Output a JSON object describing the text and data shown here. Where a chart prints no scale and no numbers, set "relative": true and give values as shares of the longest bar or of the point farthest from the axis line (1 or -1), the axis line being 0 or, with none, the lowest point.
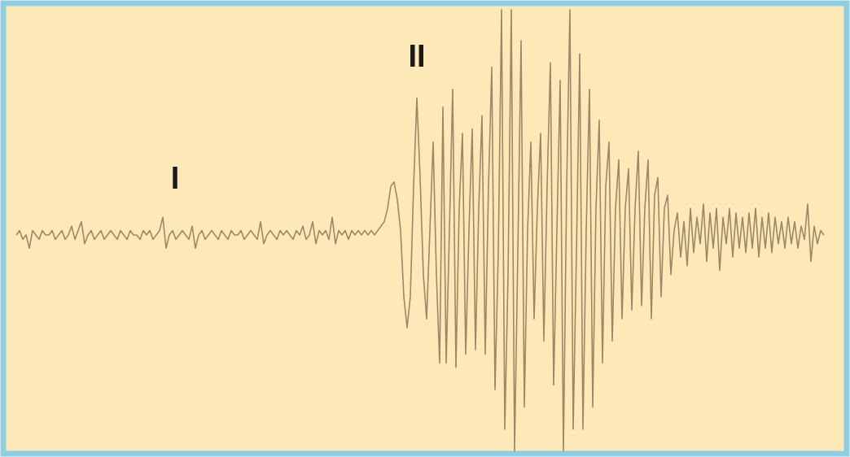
{
  "chart_data": {
    "type": "line",
    "relative": true,
    "marker": "none",
    "line_style": "solid",
    "annotations": [
      "I",
      "II"
    ],
    "categories": [
      null,
      null,
      null,
      null,
      null,
      null,
      null,
      null,
      null,
      null,
      null,
      null,
      null,
      null,
      null,
      null,
      null,
      null,
      null,
      null,
      null,
      null,
      null,
      null,
      null,
      null,
      null,
      null,
      null,
      null,
      null,
      null,
      null,
      null,
      null,
      null,
      null,
      null,
      null,
      null,
      null,
      null,
      null,
      null,
      null,
      null,
      null,
      null,
      null,
      null,
      null,
      null,
      null,
      null,
      null,
      null,
      null,
      null,
      null,
      null,
      null,
      null,
      null,
      null,
      null,
      null,
      null,
      null,
      null,
      null,
      null,
      null,
      null,
      null,
      null,
      null,
      null,
      null,
      null,
      null,
      null,
      null,
      null,
      null,
      null,
      null,
      null,
      null,
      null,
      null,
      null,
      null,
      null,
      null,
      null,
      null,
      null,
      null,
      null,
      null,
      null,
      null,
      null,
      null,
      null,
      null,
      null,
      null,
      null,
      null,
      null,
      null,
      null,
      null,
      null,
      null,
      null,
      null,
      null,
      null,
      null,
      null,
      null,
      null,
      null,
      null,
      null,
      null,
      null,
      null,
      null,
      null,
      null,
      null,
      null,
      null,
      null,
      null,
      null,
      null,
      null,
      null,
      null,
      null,
      null,
      null,
      null,
      null,
      null,
      null,
      null,
      null,
      null,
      null,
      null,
      null,
      null,
      null,
      null,
      null,
      null,
      null,
      null,
      null,
      null,
      null,
      null,
      null,
      null,
      null,
      null,
      null,
      null,
      null,
      null,
      null,
      null,
      null,
      null,
      null,
      null,
      null,
      null,
      null,
      null,
      null,
      null,
      null,
      null,
      null,
      null,
      null,
      null,
      null,
      null,
      null,
      null,
      null,
      null,
      null,
      null,
      null,
      null,
      null,
      null,
      null,
      null,
      null,
      null,
      null,
      null,
      null,
      null,
      null,
      null,
      null,
      null,
      null,
      null,
      null,
      null,
      null,
      null,
      null,
      null,
      null,
      null,
      null,
      null,
      null,
      null,
      null,
      null,
      null,
      null,
      null,
      null,
      null,
      null,
      null,
      null,
      null,
      null,
      null,
      null,
      null,
      null,
      null,
      null
    ],
    "series": [
      {
        "color": "#9c8866",
        "values": [
          0.49,
          0.5,
          0.48,
          0.49,
          0.46,
          0.5,
          0.49,
          0.48,
          0.5,
          0.49,
          0.49,
          0.5,
          0.48,
          0.49,
          0.5,
          0.48,
          0.49,
          0.51,
          0.48,
          0.5,
          0.52,
          0.47,
          0.49,
          0.5,
          0.48,
          0.49,
          0.5,
          0.48,
          0.49,
          0.5,
          0.49,
          0.48,
          0.5,
          0.49,
          0.48,
          0.5,
          0.49,
          0.49,
          0.48,
          0.5,
          0.49,
          0.5,
          0.48,
          0.49,
          0.5,
          0.53,
          0.46,
          0.49,
          0.5,
          0.48,
          0.49,
          0.5,
          0.49,
          0.48,
          0.51,
          0.46,
          0.49,
          0.5,
          0.48,
          0.49,
          0.5,
          0.49,
          0.48,
          0.5,
          0.49,
          0.48,
          0.5,
          0.49,
          0.49,
          0.5,
          0.48,
          0.49,
          0.5,
          0.49,
          0.48,
          0.52,
          0.47,
          0.49,
          0.5,
          0.49,
          0.48,
          0.5,
          0.49,
          0.5,
          0.49,
          0.48,
          0.5,
          0.49,
          0.51,
          0.48,
          0.49,
          0.52,
          0.47,
          0.5,
          0.49,
          0.5,
          0.48,
          0.53,
          0.47,
          0.5,
          0.49,
          0.5,
          0.48,
          0.5,
          0.49,
          0.5,
          0.49,
          0.5,
          0.49,
          0.5,
          0.49,
          0.5,
          0.51,
          0.52,
          0.55,
          0.6,
          0.61,
          0.57,
          0.5,
          0.35,
          0.28,
          0.35,
          0.6,
          0.8,
          0.62,
          0.4,
          0.3,
          0.5,
          0.7,
          0.4,
          0.2,
          0.78,
          0.2,
          0.5,
          0.82,
          0.19,
          0.55,
          0.72,
          0.22,
          0.5,
          0.73,
          0.23,
          0.55,
          0.76,
          0.22,
          0.6,
          0.87,
          0.14,
          0.45,
          1.0,
          0.05,
          0.4,
          1.0,
          0.0,
          0.45,
          0.93,
          0.1,
          0.5,
          0.7,
          0.3,
          0.55,
          0.72,
          0.25,
          0.6,
          0.88,
          0.15,
          0.5,
          0.84,
          0.0,
          0.6,
          1.0,
          0.05,
          0.45,
          0.9,
          0.05,
          0.5,
          0.82,
          0.1,
          0.55,
          0.75,
          0.2,
          0.6,
          0.7,
          0.25,
          0.55,
          0.66,
          0.3,
          0.55,
          0.64,
          0.32,
          0.55,
          0.68,
          0.33,
          0.55,
          0.66,
          0.3,
          0.58,
          0.62,
          0.35,
          0.55,
          0.58,
          0.4,
          0.5,
          0.54,
          0.44,
          0.52,
          0.42,
          0.55,
          0.45,
          0.53,
          0.47,
          0.56,
          0.43,
          0.54,
          0.46,
          0.55,
          0.41,
          0.53,
          0.47,
          0.55,
          0.44,
          0.54,
          0.46,
          0.53,
          0.45,
          0.54,
          0.46,
          0.55,
          0.44,
          0.53,
          0.46,
          0.54,
          0.45,
          0.53,
          0.47,
          0.52,
          0.46,
          0.53,
          0.47,
          0.52,
          0.46,
          0.51,
          0.48,
          0.56,
          0.43,
          0.51,
          0.47,
          0.5,
          0.49
        ]
      }
    ]
  }
}
